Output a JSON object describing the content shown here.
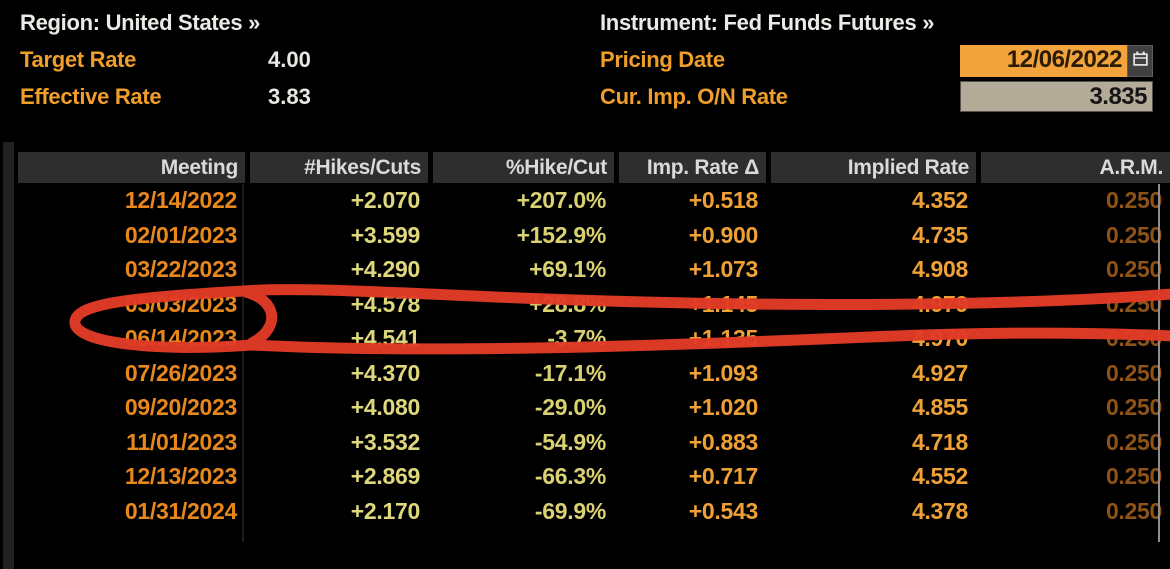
{
  "screen": {
    "region_line": "Region: United States »",
    "instrument_line": "Instrument: Fed Funds Futures »",
    "target_rate": {
      "label": "Target Rate",
      "value": "4.00"
    },
    "effective_rate": {
      "label": "Effective Rate",
      "value": "3.83"
    },
    "pricing_date": {
      "label": "Pricing Date",
      "value": "12/06/2022"
    },
    "cur_imp_on_rate": {
      "label": "Cur. Imp. O/N Rate",
      "value": "3.835"
    }
  },
  "table": {
    "columns": [
      "Meeting",
      "#Hikes/Cuts",
      "%Hike/Cut",
      "Imp. Rate Δ",
      "Implied Rate",
      "A.R.M."
    ],
    "rows": [
      [
        "12/14/2022",
        "+2.070",
        "+207.0%",
        "+0.518",
        "4.352",
        "0.250"
      ],
      [
        "02/01/2023",
        "+3.599",
        "+152.9%",
        "+0.900",
        "4.735",
        "0.250"
      ],
      [
        "03/22/2023",
        "+4.290",
        "+69.1%",
        "+1.073",
        "4.908",
        "0.250"
      ],
      [
        "05/03/2023",
        "+4.578",
        "+28.8%",
        "+1.145",
        "4.979",
        "0.250"
      ],
      [
        "06/14/2023",
        "+4.541",
        "-3.7%",
        "+1.135",
        "4.970",
        "0.250"
      ],
      [
        "07/26/2023",
        "+4.370",
        "-17.1%",
        "+1.093",
        "4.927",
        "0.250"
      ],
      [
        "09/20/2023",
        "+4.080",
        "-29.0%",
        "+1.020",
        "4.855",
        "0.250"
      ],
      [
        "11/01/2023",
        "+3.532",
        "-54.9%",
        "+0.883",
        "4.718",
        "0.250"
      ],
      [
        "12/13/2023",
        "+2.869",
        "-66.3%",
        "+0.717",
        "4.552",
        "0.250"
      ],
      [
        "01/31/2024",
        "+2.170",
        "-69.9%",
        "+0.543",
        "4.378",
        "0.250"
      ]
    ],
    "annotated_row": "05/03/2023"
  },
  "annotation": {
    "shape": "hand-drawn red circle around 05/03/2023 row, tails extend off right edge",
    "color": "#e23b26"
  },
  "colors": {
    "amber_label": "#f09e2a",
    "meeting_orange": "#e8881c",
    "hikes_pale_yellow": "#ded77c",
    "rate_orange": "#f0a136",
    "arm_brown": "#8f5317",
    "pricing_field_bg": "#f2a33c",
    "rate_field_bg": "#b3aa97",
    "table_header_bg": "#2e2e2e",
    "annotation_red": "#e23b26"
  }
}
